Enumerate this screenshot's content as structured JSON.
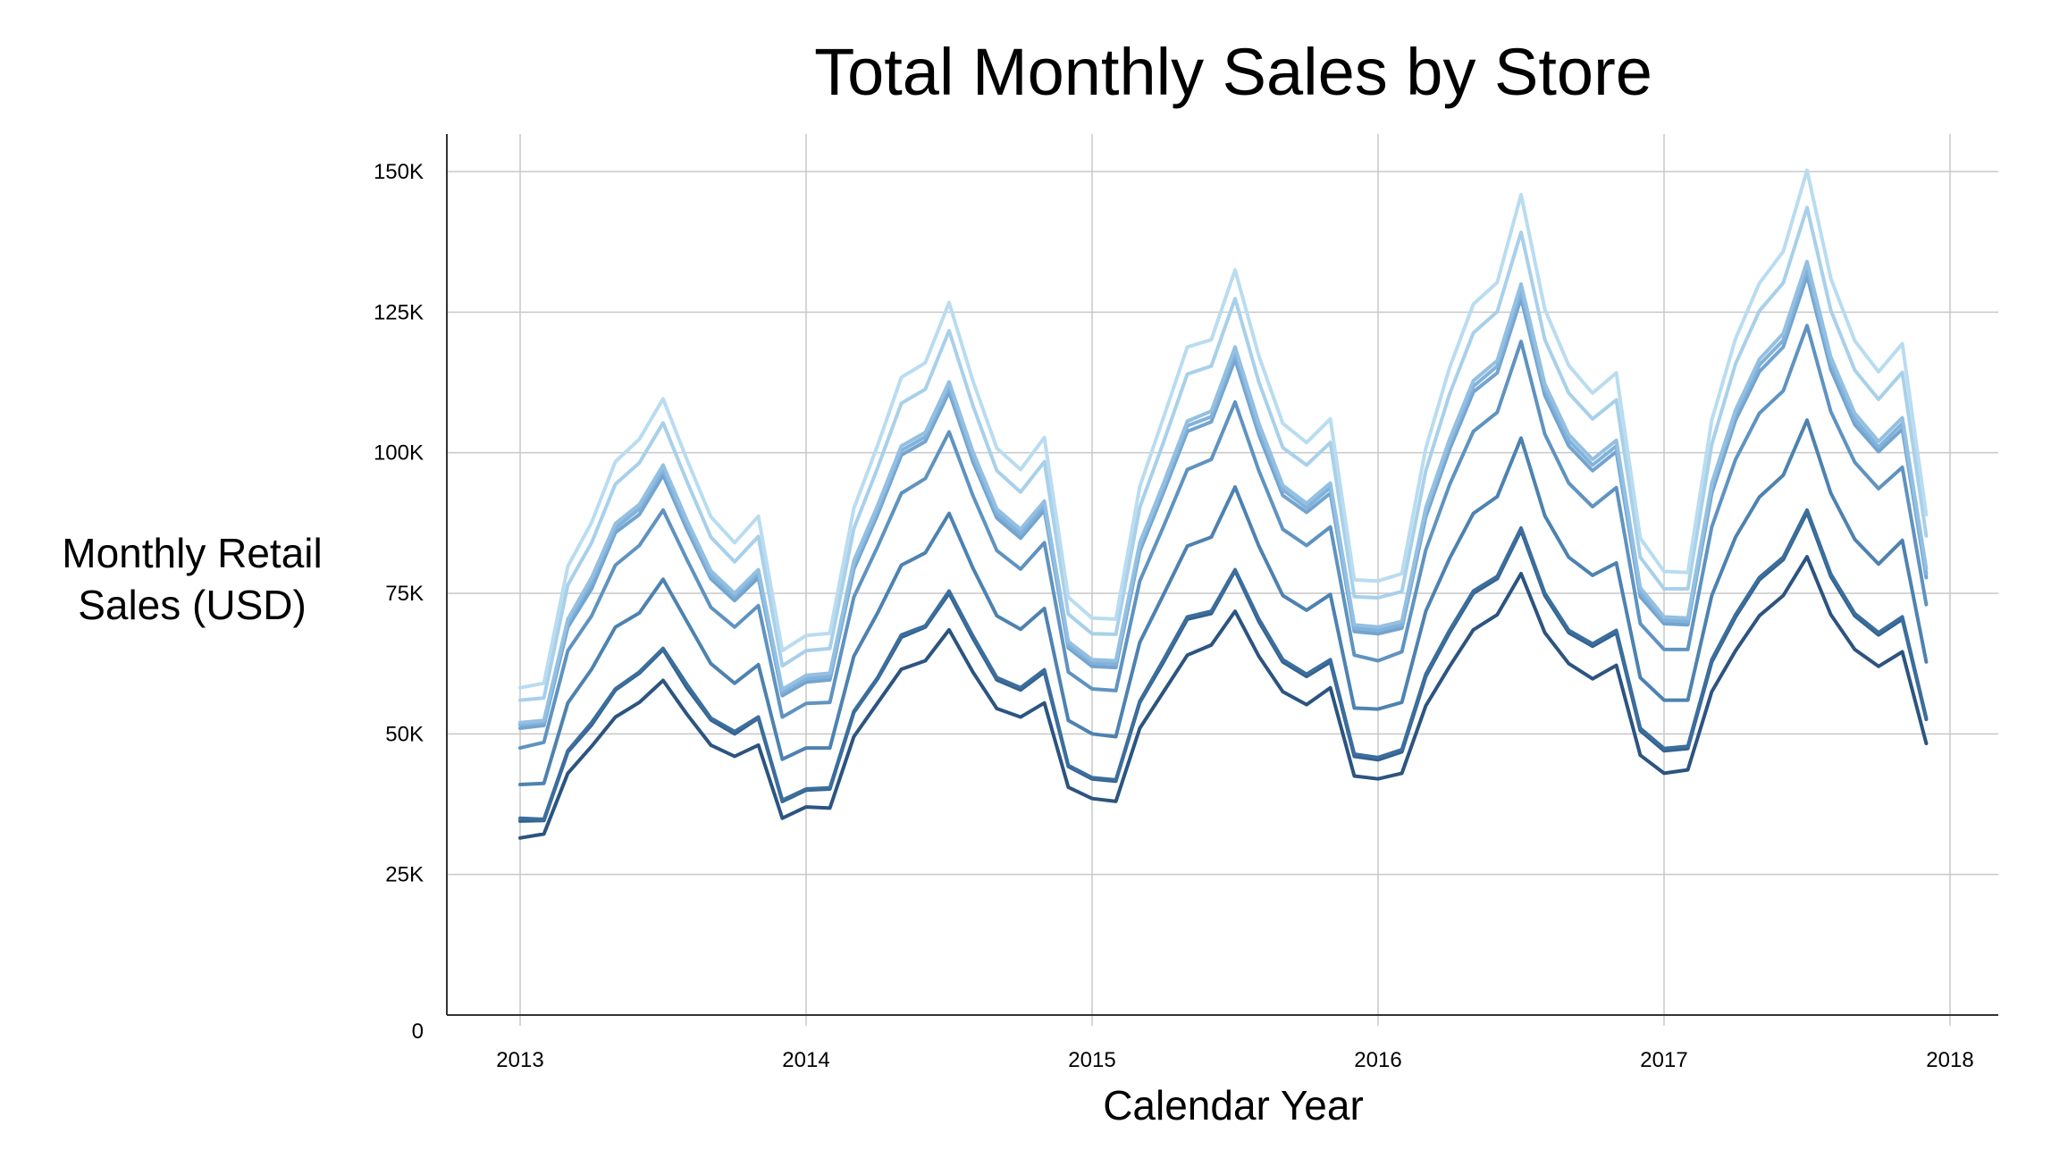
{
  "chart_data": {
    "type": "line",
    "title": "Total Monthly Sales by Store",
    "xlabel": "Calendar Year",
    "ylabel": "Monthly Retail Sales (USD)",
    "xlim": [
      2012.75,
      2018.17
    ],
    "ylim": [
      0,
      157000
    ],
    "grid": true,
    "x_ticks": [
      2013,
      2014,
      2015,
      2016,
      2017,
      2018
    ],
    "x_tick_labels": [
      "2013",
      "2014",
      "2015",
      "2016",
      "2017",
      "2018"
    ],
    "y_ticks": [
      0,
      25000,
      50000,
      75000,
      100000,
      125000,
      150000
    ],
    "y_tick_labels": [
      "0",
      "25K",
      "50K",
      "75K",
      "100K",
      "125K",
      "150K"
    ],
    "colors": [
      "#2c5480",
      "#32618f",
      "#3b6e9c",
      "#4d82b0",
      "#5f93c0",
      "#73a4cf",
      "#82b2da",
      "#93c0e2",
      "#a8d0ea",
      "#b9dcf0"
    ],
    "x": [
      2013.0,
      2013.083,
      2013.167,
      2013.25,
      2013.333,
      2013.417,
      2013.5,
      2013.583,
      2013.667,
      2013.75,
      2013.833,
      2013.917,
      2014.0,
      2014.083,
      2014.167,
      2014.25,
      2014.333,
      2014.417,
      2014.5,
      2014.583,
      2014.667,
      2014.75,
      2014.833,
      2014.917,
      2015.0,
      2015.083,
      2015.167,
      2015.25,
      2015.333,
      2015.417,
      2015.5,
      2015.583,
      2015.667,
      2015.75,
      2015.833,
      2015.917,
      2016.0,
      2016.083,
      2016.167,
      2016.25,
      2016.333,
      2016.417,
      2016.5,
      2016.583,
      2016.667,
      2016.75,
      2016.833,
      2016.917,
      2017.0,
      2017.083,
      2017.167,
      2017.25,
      2017.333,
      2017.417,
      2017.5,
      2017.583,
      2017.667,
      2017.75,
      2017.833,
      2017.917
    ],
    "series": [
      {
        "values": [
          31500,
          32200,
          43000,
          47800,
          53000,
          55600,
          59500,
          53500,
          48000,
          46000,
          48000,
          35000,
          37000,
          36800,
          49500,
          55500,
          61500,
          63000,
          68500,
          61000,
          54500,
          53000,
          55500,
          40500,
          38500,
          38000,
          51000,
          57500,
          64000,
          65800,
          71800,
          63800,
          57500,
          55200,
          58200,
          42500,
          42000,
          43000,
          55000,
          62000,
          68500,
          71200,
          78500,
          68000,
          62500,
          59800,
          62200,
          46200,
          43000,
          43600,
          57500,
          64800,
          71000,
          74600,
          81500,
          71200,
          65000,
          62000,
          64600,
          48300
        ]
      },
      {
        "values": [
          34500,
          34600,
          46800,
          51600,
          57800,
          60800,
          65000,
          58200,
          52500,
          50000,
          52800,
          38000,
          40000,
          40200,
          53800,
          59800,
          67200,
          69000,
          75000,
          67000,
          59600,
          57800,
          61000,
          44200,
          42000,
          41600,
          55600,
          62800,
          70400,
          71400,
          79000,
          70000,
          62800,
          60200,
          62800,
          46000,
          45400,
          46800,
          60200,
          68000,
          75000,
          77600,
          86200,
          74600,
          68000,
          65600,
          68000,
          50600,
          47000,
          47400,
          62800,
          70800,
          77400,
          81000,
          89400,
          78000,
          71000,
          67600,
          70400,
          52600
        ]
      },
      {
        "values": [
          35000,
          34800,
          47000,
          52000,
          58000,
          61000,
          65200,
          58800,
          52800,
          50400,
          53000,
          38200,
          40200,
          40400,
          54000,
          60000,
          67600,
          69200,
          75400,
          67400,
          60000,
          58200,
          61400,
          44400,
          42200,
          41800,
          55800,
          63200,
          70800,
          71800,
          79200,
          70400,
          63200,
          60600,
          63200,
          46400,
          45800,
          47200,
          60600,
          68400,
          75400,
          78000,
          86600,
          75000,
          68400,
          66000,
          68400,
          51000,
          47400,
          47800,
          63200,
          71200,
          77800,
          81400,
          89800,
          78400,
          71400,
          68000,
          70800,
          52800
        ]
      },
      {
        "values": [
          41000,
          41200,
          55500,
          61500,
          69000,
          71500,
          77500,
          70000,
          62500,
          59000,
          62300,
          45500,
          47500,
          47500,
          63800,
          71500,
          80000,
          82200,
          89200,
          79500,
          71000,
          68600,
          72300,
          52400,
          50000,
          49500,
          66300,
          74800,
          83400,
          85000,
          93900,
          83400,
          74600,
          72000,
          74800,
          54600,
          54400,
          55600,
          71800,
          81200,
          89200,
          92200,
          102600,
          88800,
          81400,
          78200,
          80400,
          60000,
          56000,
          56000,
          74600,
          85000,
          92100,
          96000,
          105800,
          92800,
          84600,
          80200,
          84400,
          62800
        ]
      },
      {
        "values": [
          47500,
          48500,
          64800,
          71000,
          80000,
          83500,
          89800,
          81000,
          72500,
          69000,
          72800,
          53000,
          55400,
          55600,
          74300,
          83300,
          92800,
          95400,
          103700,
          92400,
          82600,
          79300,
          84000,
          61000,
          58000,
          57700,
          77200,
          86900,
          97000,
          98800,
          109000,
          96800,
          86400,
          83500,
          86800,
          64000,
          63000,
          64600,
          82700,
          94300,
          103800,
          107200,
          119800,
          103300,
          94600,
          90400,
          93800,
          69600,
          65000,
          65000,
          86800,
          98800,
          107000,
          111000,
          122600,
          107300,
          98300,
          93600,
          97400,
          73000
        ]
      },
      {
        "values": [
          51000,
          51500,
          69000,
          75800,
          85800,
          89000,
          96000,
          86400,
          77600,
          73700,
          77800,
          56800,
          59200,
          59600,
          79300,
          89000,
          99600,
          102000,
          110800,
          98400,
          88400,
          84800,
          89800,
          65300,
          62000,
          61800,
          82500,
          93000,
          103800,
          105500,
          116600,
          103200,
          92400,
          89400,
          92800,
          68200,
          67800,
          68800,
          88600,
          100600,
          110800,
          114200,
          127500,
          110200,
          101200,
          96800,
          100200,
          74400,
          69600,
          69400,
          92800,
          105800,
          114400,
          118800,
          131500,
          114800,
          105000,
          100200,
          104200,
          77800
        ]
      },
      {
        "values": [
          51600,
          52000,
          69800,
          77000,
          86600,
          90000,
          97000,
          87200,
          78200,
          74400,
          78600,
          57400,
          59800,
          60200,
          80000,
          89800,
          100400,
          102800,
          111800,
          99300,
          89200,
          85600,
          90600,
          65800,
          62600,
          62400,
          83200,
          93800,
          104800,
          106400,
          117800,
          104200,
          93400,
          90200,
          93800,
          68800,
          68400,
          69400,
          89400,
          101600,
          111800,
          115400,
          128700,
          111200,
          102200,
          97800,
          101200,
          75200,
          70200,
          70000,
          93800,
          106800,
          115600,
          120000,
          132800,
          116000,
          106000,
          101000,
          105200,
          78500
        ]
      },
      {
        "values": [
          52000,
          52400,
          70400,
          77800,
          87400,
          90800,
          97800,
          88000,
          79000,
          75000,
          79200,
          57900,
          60400,
          60800,
          80800,
          90600,
          101200,
          103600,
          112600,
          100200,
          90000,
          86400,
          91400,
          66400,
          63200,
          63000,
          84000,
          94600,
          105600,
          107400,
          118800,
          105200,
          94200,
          91000,
          94600,
          69400,
          69000,
          70000,
          90200,
          102400,
          112800,
          116400,
          130000,
          112200,
          103200,
          98800,
          102200,
          76000,
          70800,
          70600,
          94600,
          107600,
          116600,
          121200,
          134000,
          117000,
          107000,
          102000,
          106200,
          79400
        ]
      },
      {
        "values": [
          56000,
          56400,
          76500,
          84000,
          94400,
          98200,
          105300,
          94900,
          85000,
          80600,
          85100,
          62100,
          64800,
          65200,
          86500,
          97300,
          108800,
          111300,
          121700,
          108400,
          96800,
          93000,
          98400,
          71300,
          67800,
          67700,
          90300,
          101900,
          114000,
          115400,
          127400,
          112600,
          100900,
          97800,
          101800,
          74400,
          74200,
          75300,
          96800,
          110400,
          121300,
          125100,
          139200,
          120100,
          110600,
          106000,
          109400,
          81400,
          75800,
          75800,
          101500,
          115800,
          125200,
          130200,
          143600,
          125300,
          114700,
          109500,
          114300,
          85200
        ]
      },
      {
        "values": [
          58200,
          59000,
          79800,
          87600,
          98400,
          102400,
          109600,
          98800,
          88600,
          84000,
          88700,
          64800,
          67500,
          67900,
          90100,
          101300,
          113400,
          116000,
          126700,
          112800,
          100800,
          97000,
          102700,
          74300,
          70600,
          70400,
          94000,
          106300,
          118800,
          120100,
          132500,
          117200,
          105200,
          101800,
          106000,
          77400,
          77200,
          78500,
          100800,
          115100,
          126400,
          130300,
          145900,
          125500,
          115500,
          110600,
          114200,
          84800,
          78900,
          78700,
          105800,
          120300,
          130100,
          135800,
          150200,
          131000,
          119900,
          114400,
          119400,
          89000
        ]
      }
    ]
  }
}
